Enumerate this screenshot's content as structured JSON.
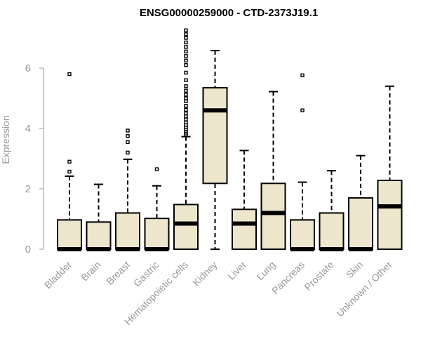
{
  "chart_data": {
    "type": "boxplot",
    "title": "ENSG00000259000 - CTD-2373J19.1",
    "xlabel": "",
    "ylabel": "Expression",
    "ylim": [
      0,
      7.3
    ],
    "yticks": [
      0,
      2,
      4,
      6
    ],
    "grid": false,
    "legend": "none",
    "colors": {
      "box_fill": "#ede6cc",
      "stroke": "#000000",
      "axis_text": "#999999"
    },
    "categories": [
      "Bladder",
      "Brain",
      "Breast",
      "Gastric",
      "Hematopoietic cells",
      "Kidney",
      "Liver",
      "Lung",
      "Pancreas",
      "Prostate",
      "Skin",
      "Unknown / Other"
    ],
    "boxes": [
      {
        "label": "Bladder",
        "lower": 0,
        "q1": 0,
        "median": 0,
        "q3": 0.97,
        "upper": 2.42,
        "outliers": [
          2.57,
          2.9,
          5.8
        ]
      },
      {
        "label": "Brain",
        "lower": 0,
        "q1": 0,
        "median": 0,
        "q3": 0.9,
        "upper": 2.15,
        "outliers": []
      },
      {
        "label": "Breast",
        "lower": 0,
        "q1": 0,
        "median": 0,
        "q3": 1.2,
        "upper": 2.98,
        "outliers": [
          3.2,
          3.55,
          3.75,
          3.93
        ]
      },
      {
        "label": "Gastric",
        "lower": 0,
        "q1": 0,
        "median": 0,
        "q3": 1.02,
        "upper": 2.1,
        "outliers": [
          2.65
        ]
      },
      {
        "label": "Hematopoietic cells",
        "lower": 0,
        "q1": 0,
        "median": 0.85,
        "q3": 1.48,
        "upper": 3.73,
        "outliers": [
          3.8,
          3.86,
          3.92,
          3.98,
          4.05,
          4.12,
          4.2,
          4.3,
          4.4,
          4.5,
          4.62,
          4.75,
          4.9,
          5.0,
          5.12,
          5.25,
          5.4,
          5.6,
          5.85,
          6.1,
          6.25,
          6.4,
          6.55,
          6.7,
          6.85,
          7.0,
          7.12,
          7.25
        ]
      },
      {
        "label": "Kidney",
        "lower": 0,
        "q1": 2.18,
        "median": 4.6,
        "q3": 5.35,
        "upper": 6.58,
        "outliers": []
      },
      {
        "label": "Liver",
        "lower": 0,
        "q1": 0,
        "median": 0.85,
        "q3": 1.32,
        "upper": 3.27,
        "outliers": []
      },
      {
        "label": "Lung",
        "lower": 0,
        "q1": 0,
        "median": 1.2,
        "q3": 2.18,
        "upper": 5.22,
        "outliers": []
      },
      {
        "label": "Pancreas",
        "lower": 0,
        "q1": 0,
        "median": 0,
        "q3": 0.97,
        "upper": 2.22,
        "outliers": [
          4.6,
          5.76
        ]
      },
      {
        "label": "Prostate",
        "lower": 0,
        "q1": 0,
        "median": 0,
        "q3": 1.2,
        "upper": 2.6,
        "outliers": []
      },
      {
        "label": "Skin",
        "lower": 0,
        "q1": 0,
        "median": 0,
        "q3": 1.7,
        "upper": 3.1,
        "outliers": []
      },
      {
        "label": "Unknown / Other",
        "lower": 0,
        "q1": 0,
        "median": 1.42,
        "q3": 2.28,
        "upper": 5.4,
        "outliers": []
      }
    ]
  }
}
